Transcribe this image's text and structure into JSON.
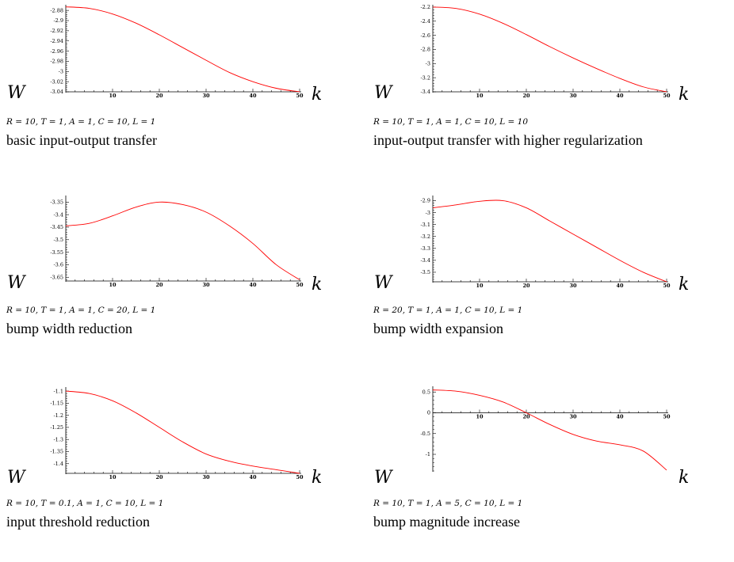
{
  "chart_data": [
    {
      "type": "line",
      "ylabel": "W",
      "xlabel": "k",
      "params": "R = 10, T = 1, A = 1, C = 10, L = 1",
      "caption": "basic input-output transfer",
      "xlim": [
        0,
        50
      ],
      "ylim": [
        -3.04,
        -2.872
      ],
      "xticks": [
        "10",
        "20",
        "30",
        "40",
        "50"
      ],
      "yticks": [
        "-2.88",
        "-2.9",
        "-2.92",
        "-2.94",
        "-2.96",
        "-2.98",
        "-3",
        "-3.02",
        "-3.04"
      ],
      "x": [
        0,
        5,
        10,
        15,
        20,
        25,
        30,
        35,
        40,
        45,
        50
      ],
      "y": [
        -2.873,
        -2.876,
        -2.887,
        -2.905,
        -2.928,
        -2.953,
        -2.978,
        -3.002,
        -3.02,
        -3.033,
        -3.04
      ],
      "color": "#ff0000"
    },
    {
      "type": "line",
      "ylabel": "W",
      "xlabel": "k",
      "params": "R = 10, T = 1, A = 1, C = 10, L = 10",
      "caption": "input-output transfer with higher regularization",
      "xlim": [
        0,
        50
      ],
      "ylim": [
        -3.4,
        -2.19
      ],
      "xticks": [
        "10",
        "20",
        "30",
        "40",
        "50"
      ],
      "yticks": [
        "-2.2",
        "-2.4",
        "-2.6",
        "-2.8",
        "-3",
        "-3.2",
        "-3.4"
      ],
      "x": [
        0,
        5,
        10,
        15,
        20,
        25,
        30,
        35,
        40,
        45,
        50
      ],
      "y": [
        -2.2,
        -2.22,
        -2.3,
        -2.43,
        -2.59,
        -2.76,
        -2.92,
        -3.07,
        -3.21,
        -3.33,
        -3.4
      ],
      "color": "#ff0000"
    },
    {
      "type": "line",
      "ylabel": "W",
      "xlabel": "k",
      "params": "R = 10, T = 1, A = 1, C = 20, L = 1",
      "caption": "bump width reduction",
      "xlim": [
        0,
        50
      ],
      "ylim": [
        -3.665,
        -3.33
      ],
      "xticks": [
        "10",
        "20",
        "30",
        "40",
        "50"
      ],
      "yticks": [
        "-3.35",
        "-3.4",
        "-3.45",
        "-3.5",
        "-3.55",
        "-3.6",
        "-3.65"
      ],
      "x": [
        0,
        5,
        10,
        15,
        20,
        25,
        30,
        35,
        40,
        45,
        50
      ],
      "y": [
        -3.445,
        -3.435,
        -3.405,
        -3.37,
        -3.35,
        -3.36,
        -3.39,
        -3.445,
        -3.515,
        -3.6,
        -3.66
      ],
      "color": "#ff0000"
    },
    {
      "type": "line",
      "ylabel": "W",
      "xlabel": "k",
      "params": "R = 20, T = 1, A = 1, C = 10, L = 1",
      "caption": "bump width expansion",
      "xlim": [
        0,
        50
      ],
      "ylim": [
        -3.58,
        -2.87
      ],
      "xticks": [
        "10",
        "20",
        "30",
        "40",
        "50"
      ],
      "yticks": [
        "-2.9",
        "-3",
        "-3.1",
        "-3.2",
        "-3.3",
        "-3.4",
        "-3.5"
      ],
      "x": [
        0,
        5,
        10,
        15,
        20,
        25,
        30,
        35,
        40,
        45,
        50
      ],
      "y": [
        -2.96,
        -2.935,
        -2.905,
        -2.9,
        -2.96,
        -3.07,
        -3.18,
        -3.29,
        -3.4,
        -3.5,
        -3.58
      ],
      "color": "#ff0000"
    },
    {
      "type": "line",
      "ylabel": "W",
      "xlabel": "k",
      "params": "R = 10, T = 0.1, A = 1, C = 10, L = 1",
      "caption": "input threshold reduction",
      "xlim": [
        0,
        50
      ],
      "ylim": [
        -1.44,
        -1.09
      ],
      "xticks": [
        "10",
        "20",
        "30",
        "40",
        "50"
      ],
      "yticks": [
        "-1.1",
        "-1.15",
        "-1.2",
        "-1.25",
        "-1.3",
        "-1.35",
        "-1.4"
      ],
      "x": [
        0,
        5,
        10,
        15,
        20,
        25,
        30,
        35,
        40,
        45,
        50
      ],
      "y": [
        -1.1,
        -1.11,
        -1.14,
        -1.19,
        -1.25,
        -1.31,
        -1.36,
        -1.39,
        -1.41,
        -1.425,
        -1.44
      ],
      "color": "#ff0000"
    },
    {
      "type": "line",
      "ylabel": "W",
      "xlabel": "k",
      "params": "R = 10, T = 1, A = 5, C = 10, L = 1",
      "caption": "bump magnitude increase",
      "xlim": [
        0,
        50
      ],
      "ylim": [
        -1.4,
        0.6
      ],
      "xticks": [
        "10",
        "20",
        "30",
        "40",
        "50"
      ],
      "yticks": [
        "0.5",
        "0",
        "-0.5",
        "-1"
      ],
      "x": [
        0,
        5,
        10,
        15,
        20,
        25,
        30,
        35,
        40,
        45,
        50
      ],
      "y": [
        0.55,
        0.52,
        0.42,
        0.26,
        0.0,
        -0.28,
        -0.52,
        -0.68,
        -0.77,
        -0.92,
        -1.38
      ],
      "color": "#ff0000"
    }
  ]
}
